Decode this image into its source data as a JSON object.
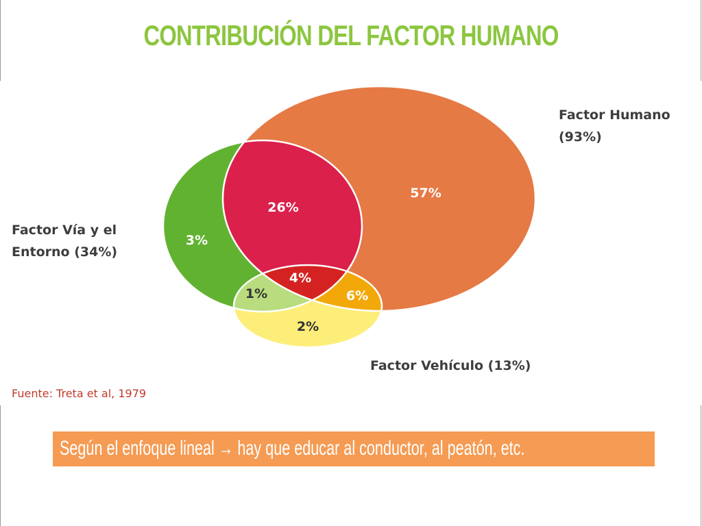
{
  "title": "CONTRIBUCIÓN DEL FACTOR HUMANO",
  "sets": {
    "humano": {
      "label_line1": "Factor Humano",
      "label_line2": "(93%)",
      "color": "#e57a45"
    },
    "via": {
      "label_line1": "Factor Vía y el",
      "label_line2": "Entorno (34%)",
      "color": "#62b232"
    },
    "vehiculo": {
      "label": "Factor Vehículo (13%)",
      "color": "#fcee79"
    }
  },
  "regions": {
    "humano_only": "57%",
    "via_humano": "26%",
    "via_only": "3%",
    "all_three": "4%",
    "via_vehiculo": "1%",
    "humano_vehiculo": "6%",
    "vehiculo_only": "2%"
  },
  "region_colors": {
    "via_humano": "#db204c",
    "all_three": "#d42222",
    "via_vehiculo": "#b8dc7e",
    "humano_vehiculo": "#f3a80a"
  },
  "source": "Fuente: Treta et al, 1979",
  "banner": {
    "text_before": "Según el enfoque lineal ",
    "arrow": "→",
    "text_after": " hay que educar al conductor, al peatón, etc.",
    "color": "#f59b53"
  },
  "title_color": "#8cc63f"
}
